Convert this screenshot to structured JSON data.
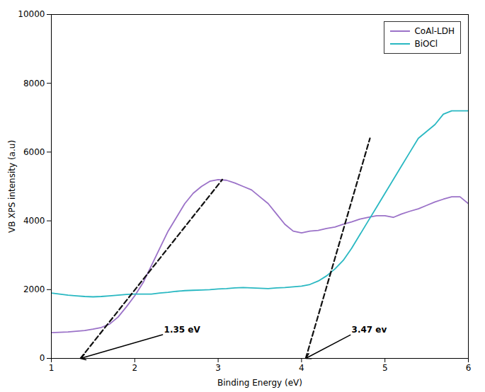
{
  "chart_data": {
    "type": "line",
    "xlabel": "Binding Energy (eV)",
    "ylabel": "VB XPS intensity (a.u)",
    "xlim": [
      1,
      6
    ],
    "ylim": [
      0,
      10000
    ],
    "xticks": [
      1,
      2,
      3,
      4,
      5,
      6
    ],
    "yticks": [
      0,
      2000,
      4000,
      6000,
      8000,
      10000
    ],
    "legend": "upper right",
    "x": [
      1.0,
      1.1,
      1.2,
      1.3,
      1.4,
      1.5,
      1.6,
      1.7,
      1.8,
      1.9,
      2.0,
      2.1,
      2.2,
      2.3,
      2.4,
      2.5,
      2.6,
      2.7,
      2.8,
      2.9,
      3.0,
      3.1,
      3.2,
      3.3,
      3.4,
      3.5,
      3.6,
      3.7,
      3.8,
      3.9,
      4.0,
      4.1,
      4.2,
      4.3,
      4.4,
      4.5,
      4.6,
      4.7,
      4.8,
      4.9,
      5.0,
      5.1,
      5.2,
      5.3,
      5.4,
      5.5,
      5.6,
      5.7,
      5.8,
      5.9,
      6.0
    ],
    "series": [
      {
        "name": "CoAl-LDH",
        "color": "#9b72c8",
        "values": [
          750,
          760,
          770,
          790,
          810,
          850,
          900,
          1000,
          1200,
          1500,
          1820,
          2200,
          2700,
          3200,
          3700,
          4100,
          4500,
          4800,
          5000,
          5150,
          5200,
          5180,
          5100,
          5000,
          4900,
          4700,
          4500,
          4200,
          3900,
          3700,
          3650,
          3700,
          3720,
          3780,
          3820,
          3900,
          3970,
          4050,
          4100,
          4150,
          4150,
          4100,
          4200,
          4280,
          4350,
          4450,
          4550,
          4630,
          4700,
          4700,
          4500
        ]
      },
      {
        "name": "BiOCl",
        "color": "#29b8c2",
        "values": [
          1900,
          1870,
          1840,
          1820,
          1800,
          1790,
          1800,
          1820,
          1840,
          1860,
          1870,
          1870,
          1870,
          1900,
          1920,
          1950,
          1970,
          1980,
          1990,
          2000,
          2020,
          2030,
          2050,
          2060,
          2050,
          2040,
          2030,
          2050,
          2060,
          2080,
          2100,
          2150,
          2250,
          2400,
          2600,
          2850,
          3200,
          3600,
          4000,
          4400,
          4800,
          5200,
          5600,
          6000,
          6400,
          6600,
          6800,
          7100,
          7200,
          7200,
          7200
        ]
      }
    ],
    "reference_lines": [
      {
        "x": [
          1.35,
          3.05
        ],
        "y": [
          0,
          5200
        ],
        "color": "#111111",
        "line_style": "dashed"
      },
      {
        "x": [
          4.05,
          4.82
        ],
        "y": [
          0,
          6400
        ],
        "color": "#111111",
        "line_style": "dashed"
      }
    ],
    "annotations": [
      {
        "text": "1.35 eV",
        "x": 1.35,
        "y": 0,
        "text_x": 2.35,
        "text_y": 700,
        "color": "black"
      },
      {
        "text": "3.47 ev",
        "x": 4.05,
        "y": 0,
        "text_x": 4.6,
        "text_y": 700,
        "color": "black"
      }
    ]
  }
}
